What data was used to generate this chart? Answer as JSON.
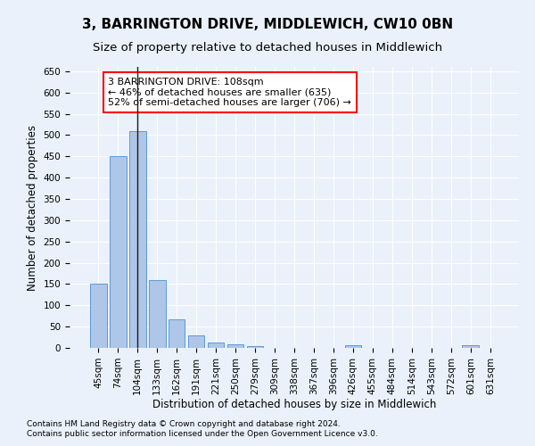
{
  "title": "3, BARRINGTON DRIVE, MIDDLEWICH, CW10 0BN",
  "subtitle": "Size of property relative to detached houses in Middlewich",
  "xlabel": "Distribution of detached houses by size in Middlewich",
  "ylabel": "Number of detached properties",
  "footnote1": "Contains HM Land Registry data © Crown copyright and database right 2024.",
  "footnote2": "Contains public sector information licensed under the Open Government Licence v3.0.",
  "categories": [
    "45sqm",
    "74sqm",
    "104sqm",
    "133sqm",
    "162sqm",
    "191sqm",
    "221sqm",
    "250sqm",
    "279sqm",
    "309sqm",
    "338sqm",
    "367sqm",
    "396sqm",
    "426sqm",
    "455sqm",
    "484sqm",
    "514sqm",
    "543sqm",
    "572sqm",
    "601sqm",
    "631sqm"
  ],
  "values": [
    150,
    450,
    510,
    160,
    68,
    30,
    13,
    9,
    5,
    0,
    0,
    0,
    0,
    6,
    0,
    0,
    0,
    0,
    0,
    6,
    0
  ],
  "bar_color": "#aec6e8",
  "bar_edge_color": "#5b9bd5",
  "vline_x": 2,
  "vline_color": "#1a1a1a",
  "annotation_line1": "3 BARRINGTON DRIVE: 108sqm",
  "annotation_line2": "← 46% of detached houses are smaller (635)",
  "annotation_line3": "52% of semi-detached houses are larger (706) →",
  "ylim": [
    0,
    660
  ],
  "yticks": [
    0,
    50,
    100,
    150,
    200,
    250,
    300,
    350,
    400,
    450,
    500,
    550,
    600,
    650
  ],
  "bg_color": "#eaf1fb",
  "plot_bg_color": "#eaf1fb",
  "grid_color": "#ffffff",
  "title_fontsize": 11,
  "subtitle_fontsize": 9.5,
  "annotation_fontsize": 8,
  "tick_fontsize": 7.5,
  "ylabel_fontsize": 8.5,
  "xlabel_fontsize": 8.5,
  "footnote_fontsize": 6.5
}
